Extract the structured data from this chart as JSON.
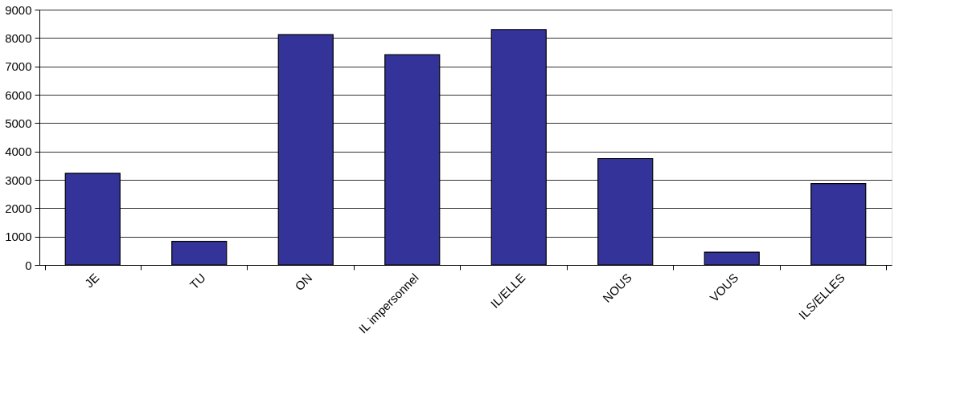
{
  "chart_data": {
    "type": "bar",
    "categories": [
      "JE",
      "TU",
      "ON",
      "IL impersonnel",
      "IL/ELLE",
      "NOUS",
      "VOUS",
      "ILS/ELLES"
    ],
    "values": [
      3230,
      830,
      8120,
      7410,
      8300,
      3750,
      450,
      2870
    ],
    "color": "#333399",
    "ylim": [
      0,
      9000
    ],
    "yticks": [
      0,
      1000,
      2000,
      3000,
      4000,
      5000,
      6000,
      7000,
      8000,
      9000
    ],
    "grid": "y"
  }
}
